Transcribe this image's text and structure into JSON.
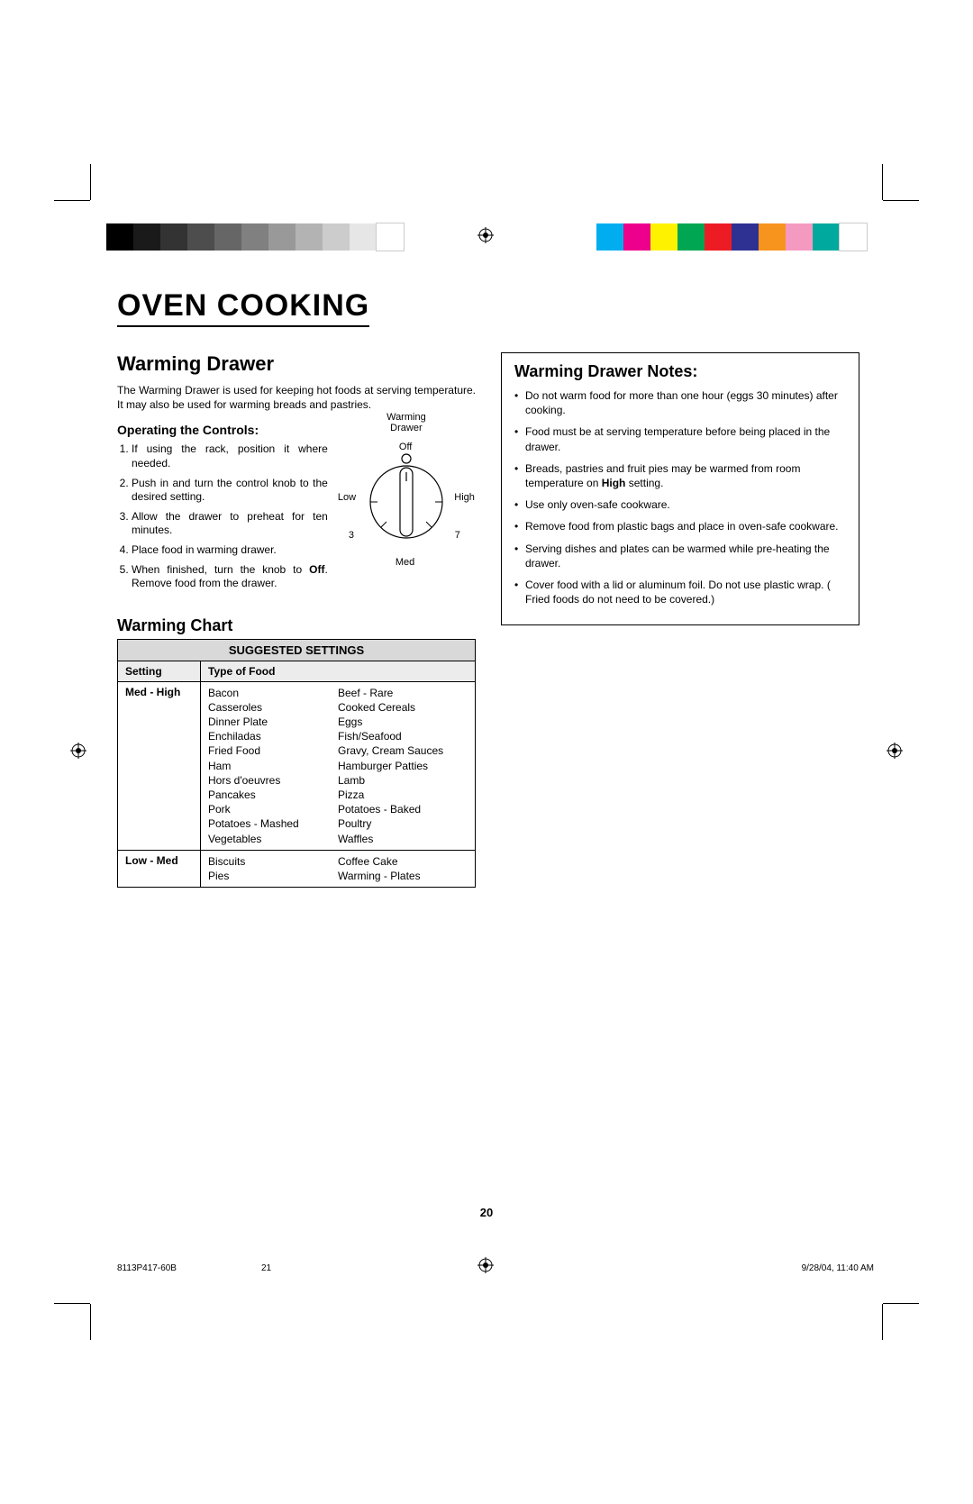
{
  "meta": {
    "page_number": "20",
    "doc_code": "8113P417-60B",
    "sheet": "21",
    "timestamp": "9/28/04, 11:40 AM"
  },
  "colorbar": {
    "left": [
      "#000000",
      "#1a1a1a",
      "#333333",
      "#4d4d4d",
      "#666666",
      "#808080",
      "#999999",
      "#b3b3b3",
      "#cccccc",
      "#e6e6e6",
      "#ffffff"
    ],
    "right": [
      "#00aeef",
      "#ec008c",
      "#fff200",
      "#00a651",
      "#ed1c24",
      "#2e3192",
      "#f7941d",
      "#f49ac1",
      "#00a99d",
      "#ffffff"
    ]
  },
  "title": "OVEN COOKING",
  "warming_drawer": {
    "heading": "Warming Drawer",
    "intro": "The Warming Drawer is used for keeping hot foods at serving temperature. It may also be used for warming breads and pastries.",
    "controls_heading": "Operating the Controls:",
    "steps": [
      "If using the rack, position it where needed.",
      "Push in and turn the control knob to the desired setting.",
      "Allow the drawer to preheat for ten minutes.",
      "Place food in warming drawer.",
      "When finished, turn the knob to <b>Off</b>. Remove food from the drawer."
    ],
    "knob": {
      "title_line1": "Warming",
      "title_line2": "Drawer",
      "off": "Off",
      "low": "Low",
      "high": "High",
      "three": "3",
      "seven": "7",
      "med": "Med"
    }
  },
  "notes": {
    "heading": "Warming Drawer Notes:",
    "items": [
      "Do not warm food for more than one hour (eggs 30 minutes) after cooking.",
      "Food must be at serving temperature before being placed in the drawer.",
      "Breads, pastries and fruit pies may be warmed from room temperature on <b>High</b> setting.",
      "Use only oven-safe cookware.",
      "Remove food from plastic bags and place in oven-safe cookware.",
      "Serving dishes and plates can be warmed while pre-heating the drawer.",
      "Cover food with a lid or aluminum foil. Do not use plastic wrap. ( Fried foods do not need to be covered.)"
    ]
  },
  "chart": {
    "heading": "Warming Chart",
    "title": "SUGGESTED SETTINGS",
    "col_setting": "Setting",
    "col_food": "Type of Food",
    "rows": [
      {
        "setting": "Med - High",
        "foods_left": [
          "Bacon",
          "Casseroles",
          "Dinner Plate",
          "Enchiladas",
          "Fried Food",
          "Ham",
          "Hors d'oeuvres",
          "Pancakes",
          "Pork",
          "Potatoes - Mashed",
          "Vegetables"
        ],
        "foods_right": [
          "Beef - Rare",
          "Cooked Cereals",
          "Eggs",
          "Fish/Seafood",
          "Gravy, Cream Sauces",
          "Hamburger Patties",
          "Lamb",
          "Pizza",
          "Potatoes - Baked",
          "Poultry",
          "Waffles"
        ]
      },
      {
        "setting": "Low - Med",
        "foods_left": [
          "Biscuits",
          "Pies"
        ],
        "foods_right": [
          "Coffee Cake",
          "Warming - Plates"
        ]
      }
    ]
  },
  "style": {
    "page_bg": "#ffffff",
    "text_color": "#000000",
    "table_header_bg": "#d9d9d9",
    "table_subheader_bg": "#ececec",
    "border_color": "#000000",
    "title_fontsize": 34,
    "h2_fontsize": 22,
    "h3_fontsize": 14,
    "body_fontsize": 12,
    "knob_fontsize": 11
  }
}
